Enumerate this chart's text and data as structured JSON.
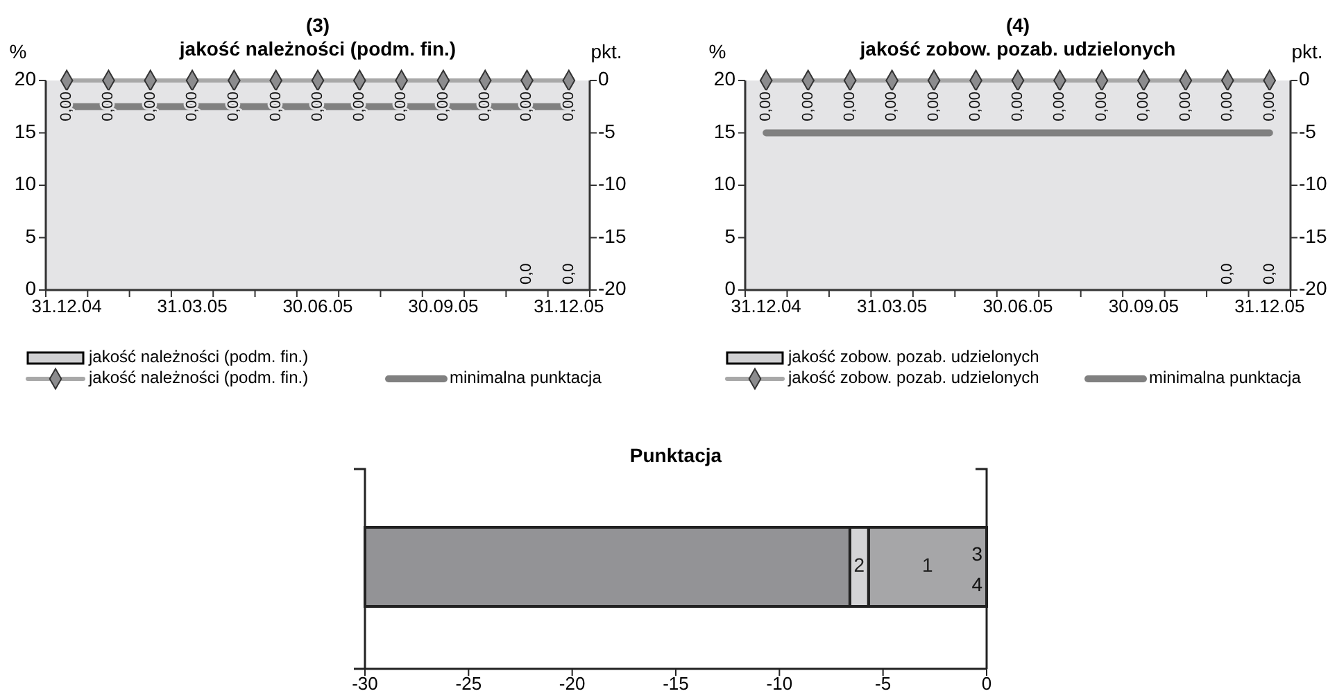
{
  "chart_data": [
    {
      "type": "bar",
      "title": "(3)",
      "subtitle": "jakość należności (podm. fin.)",
      "ylabel": "%",
      "y2label": "pkt.",
      "categories": [
        "31.12.04",
        null,
        null,
        "31.03.05",
        null,
        null,
        "30.06.05",
        null,
        null,
        "30.09.05",
        null,
        null,
        "31.12.05"
      ],
      "series": [
        {
          "name": "jakość należności (podm. fin.)",
          "color": "#d0d0d2",
          "values": [
            null,
            null,
            null,
            null,
            null,
            null,
            null,
            null,
            null,
            null,
            null,
            0,
            0
          ],
          "value_labels": [
            null,
            null,
            null,
            null,
            null,
            null,
            null,
            null,
            null,
            null,
            null,
            "0,0",
            "0,0"
          ]
        },
        {
          "name": "jakość należności (podm. fin.)",
          "type": "line",
          "axis": "y2",
          "color": "#a8a8a8",
          "marker": "diamond",
          "values": [
            0,
            0,
            0,
            0,
            0,
            0,
            0,
            0,
            0,
            0,
            0,
            0,
            0
          ],
          "value_labels": [
            "0,00",
            "0,00",
            "0,00",
            "0,00",
            "0,00",
            "0,00",
            "0,00",
            "0,00",
            "0,00",
            "0,00",
            "0,00",
            "0,00",
            "0,00"
          ]
        },
        {
          "name": "minimalna punktacja",
          "type": "line",
          "axis": "y2",
          "color": "#808080",
          "marker": "none",
          "values": [
            -2.5,
            -2.5,
            -2.5,
            -2.5,
            -2.5,
            -2.5,
            -2.5,
            -2.5,
            -2.5,
            -2.5,
            -2.5,
            -2.5,
            -2.5
          ]
        }
      ],
      "ylim": [
        0,
        20
      ],
      "yticks": [
        0,
        5,
        10,
        15,
        20
      ],
      "y2lim": [
        -20,
        0
      ],
      "y2ticks": [
        -20,
        -15,
        -10,
        -5,
        0
      ],
      "legend": "bottom"
    },
    {
      "type": "bar",
      "title": "(4)",
      "subtitle": "jakość zobow. pozab. udzielonych",
      "ylabel": "%",
      "y2label": "pkt.",
      "categories": [
        "31.12.04",
        null,
        null,
        "31.03.05",
        null,
        null,
        "30.06.05",
        null,
        null,
        "30.09.05",
        null,
        null,
        "31.12.05"
      ],
      "series": [
        {
          "name": "jakość zobow. pozab. udzielonych",
          "color": "#d0d0d2",
          "values": [
            null,
            null,
            null,
            null,
            null,
            null,
            null,
            null,
            null,
            null,
            null,
            0,
            0
          ],
          "value_labels": [
            null,
            null,
            null,
            null,
            null,
            null,
            null,
            null,
            null,
            null,
            null,
            "0,0",
            "0,0"
          ]
        },
        {
          "name": "jakość zobow. pozab. udzielonych",
          "type": "line",
          "axis": "y2",
          "color": "#a8a8a8",
          "marker": "diamond",
          "values": [
            0,
            0,
            0,
            0,
            0,
            0,
            0,
            0,
            0,
            0,
            0,
            0,
            0
          ],
          "value_labels": [
            "0,00",
            "0,00",
            "0,00",
            "0,00",
            "0,00",
            "0,00",
            "0,00",
            "0,00",
            "0,00",
            "0,00",
            "0,00",
            "0,00",
            "0,00"
          ]
        },
        {
          "name": "minimalna punktacja",
          "type": "line",
          "axis": "y2",
          "color": "#808080",
          "marker": "none",
          "values": [
            -5,
            -5,
            -5,
            -5,
            -5,
            -5,
            -5,
            -5,
            -5,
            -5,
            -5,
            -5,
            -5
          ]
        }
      ],
      "ylim": [
        0,
        20
      ],
      "yticks": [
        0,
        5,
        10,
        15,
        20
      ],
      "y2lim": [
        -20,
        0
      ],
      "y2ticks": [
        -20,
        -15,
        -10,
        -5,
        0
      ],
      "legend": "bottom"
    },
    {
      "type": "bar",
      "orientation": "horizontal",
      "stacked": true,
      "title": "Punktacja",
      "categories": [
        null
      ],
      "series": [
        {
          "name": "3",
          "values": [
            0
          ]
        },
        {
          "name": "4",
          "values": [
            0
          ]
        },
        {
          "name": "1",
          "color": "#a6a6a8",
          "values": [
            -5.7
          ]
        },
        {
          "name": "2",
          "color": "#d4d4d6",
          "values": [
            -0.9
          ]
        },
        {
          "color": "#939396",
          "values": [
            -23.4
          ]
        }
      ],
      "xlim": [
        -30,
        0
      ],
      "xticks": [
        -30,
        -25,
        -20,
        -15,
        -10,
        -5,
        0
      ],
      "tick_labels": "x"
    }
  ]
}
